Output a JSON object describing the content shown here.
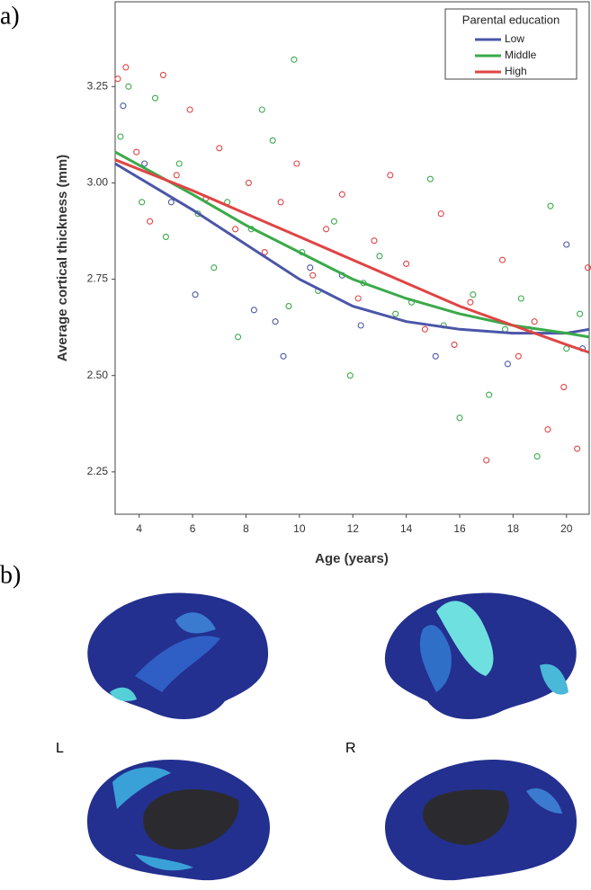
{
  "panel_labels": {
    "a": "a)",
    "b": "b)"
  },
  "hemispheres": {
    "left": "L",
    "right": "R"
  },
  "chart_data": {
    "type": "scatter",
    "x_label": "Age (years)",
    "y_label": "Average cortical thickness (mm)",
    "xlim": [
      3.1,
      20.85
    ],
    "ylim": [
      2.14,
      3.47
    ],
    "xticks": [
      4,
      6,
      8,
      10,
      12,
      14,
      16,
      18,
      20
    ],
    "yticks": [
      2.25,
      {
        "value": 2.5,
        "label": "2.50"
      },
      2.75,
      {
        "value": 3.0,
        "label": "3.00"
      },
      3.25
    ],
    "legend_title": "Parental education",
    "legend_position": "top-right",
    "series": [
      {
        "name": "Low",
        "color": "#4b56a8",
        "points": {
          "x": [
            3.4,
            4.2,
            5.2,
            6.1,
            8.3,
            9.1,
            9.4,
            10.4,
            11.6,
            12.3,
            15.1,
            17.8,
            18.6,
            20.0,
            20.6
          ],
          "values": [
            3.2,
            3.05,
            2.95,
            2.71,
            2.67,
            2.64,
            2.55,
            2.78,
            2.76,
            2.63,
            2.55,
            2.53,
            2.62,
            2.84,
            2.57
          ]
        },
        "fit": {
          "x": [
            3.1,
            6,
            8,
            10,
            12,
            14,
            16,
            18,
            20,
            20.85
          ],
          "values": [
            3.05,
            2.93,
            2.84,
            2.75,
            2.68,
            2.64,
            2.62,
            2.61,
            2.61,
            2.62
          ]
        }
      },
      {
        "name": "Middle",
        "color": "#3aaa4a",
        "points": {
          "x": [
            3.3,
            3.6,
            4.1,
            4.6,
            5.0,
            5.5,
            6.2,
            6.8,
            7.3,
            7.7,
            8.2,
            8.6,
            9.0,
            9.6,
            9.8,
            10.1,
            10.7,
            11.3,
            11.9,
            12.4,
            13.0,
            13.6,
            14.2,
            14.9,
            15.4,
            16.0,
            16.5,
            17.1,
            17.7,
            18.3,
            18.9,
            19.4,
            20.0,
            20.5
          ],
          "values": [
            3.12,
            3.25,
            2.95,
            3.22,
            2.86,
            3.05,
            2.92,
            2.78,
            2.95,
            2.6,
            2.88,
            3.19,
            3.11,
            2.68,
            3.32,
            2.82,
            2.72,
            2.9,
            2.5,
            2.74,
            2.81,
            2.66,
            2.69,
            3.01,
            2.63,
            2.39,
            2.71,
            2.45,
            2.62,
            2.7,
            2.29,
            2.94,
            2.57,
            2.66
          ]
        },
        "fit": {
          "x": [
            3.1,
            6,
            8,
            10,
            12,
            14,
            16,
            18,
            20,
            20.85
          ],
          "values": [
            3.08,
            2.97,
            2.89,
            2.82,
            2.75,
            2.7,
            2.66,
            2.63,
            2.61,
            2.6
          ]
        }
      },
      {
        "name": "High",
        "color": "#e04444",
        "points": {
          "x": [
            3.2,
            3.5,
            3.9,
            4.4,
            4.9,
            5.4,
            5.9,
            6.5,
            7.0,
            7.6,
            8.1,
            8.7,
            9.3,
            9.9,
            10.5,
            11.0,
            11.6,
            12.2,
            12.8,
            13.4,
            14.0,
            14.7,
            15.3,
            15.8,
            16.4,
            17.0,
            17.6,
            18.2,
            18.8,
            19.3,
            19.9,
            20.4,
            20.8
          ],
          "values": [
            3.27,
            3.3,
            3.08,
            2.9,
            3.28,
            3.02,
            3.19,
            2.96,
            3.09,
            2.88,
            3.0,
            2.82,
            2.95,
            3.05,
            2.76,
            2.88,
            2.97,
            2.7,
            2.85,
            3.02,
            2.79,
            2.62,
            2.92,
            2.58,
            2.69,
            2.28,
            2.8,
            2.55,
            2.64,
            2.36,
            2.47,
            2.31,
            2.78
          ]
        },
        "fit": {
          "x": [
            3.1,
            6,
            8,
            10,
            12,
            14,
            16,
            18,
            20,
            20.85
          ],
          "values": [
            3.06,
            2.98,
            2.92,
            2.86,
            2.8,
            2.74,
            2.68,
            2.63,
            2.58,
            2.56
          ]
        }
      }
    ]
  }
}
